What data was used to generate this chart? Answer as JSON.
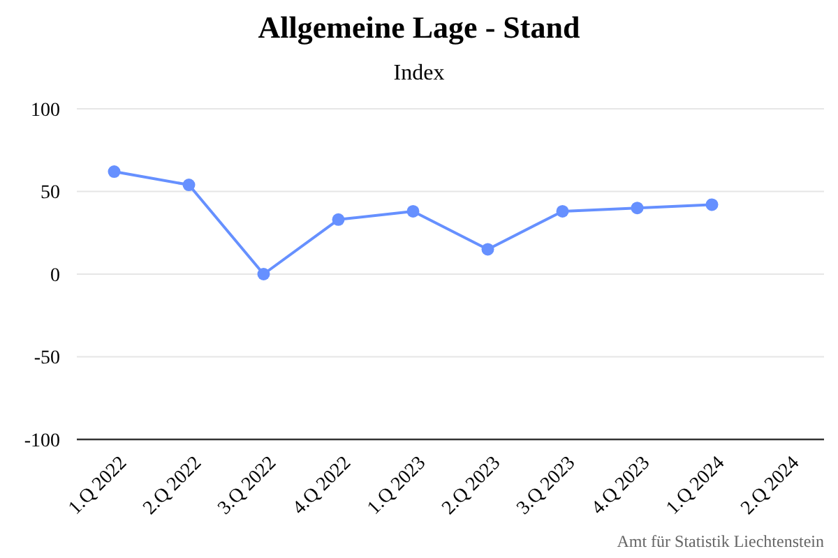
{
  "chart_data": {
    "type": "line",
    "title": "Allgemeine Lage - Stand",
    "subtitle": "Index",
    "categories": [
      "1.Q 2022",
      "2.Q 2022",
      "3.Q 2022",
      "4.Q 2022",
      "1.Q 2023",
      "2.Q 2023",
      "3.Q 2023",
      "4.Q 2023",
      "1.Q 2024",
      "2.Q 2024"
    ],
    "series": [
      {
        "color": "#6690ff",
        "values": [
          62,
          54,
          0,
          33,
          38,
          15,
          38,
          40,
          42,
          null
        ]
      }
    ],
    "ylim": [
      -100,
      100
    ],
    "yticks": [
      -100,
      -50,
      0,
      50,
      100
    ],
    "grid": "y",
    "marker": "circle",
    "line_style": "solid",
    "annotations": [
      "Amt für Statistik Liechtenstein"
    ]
  }
}
